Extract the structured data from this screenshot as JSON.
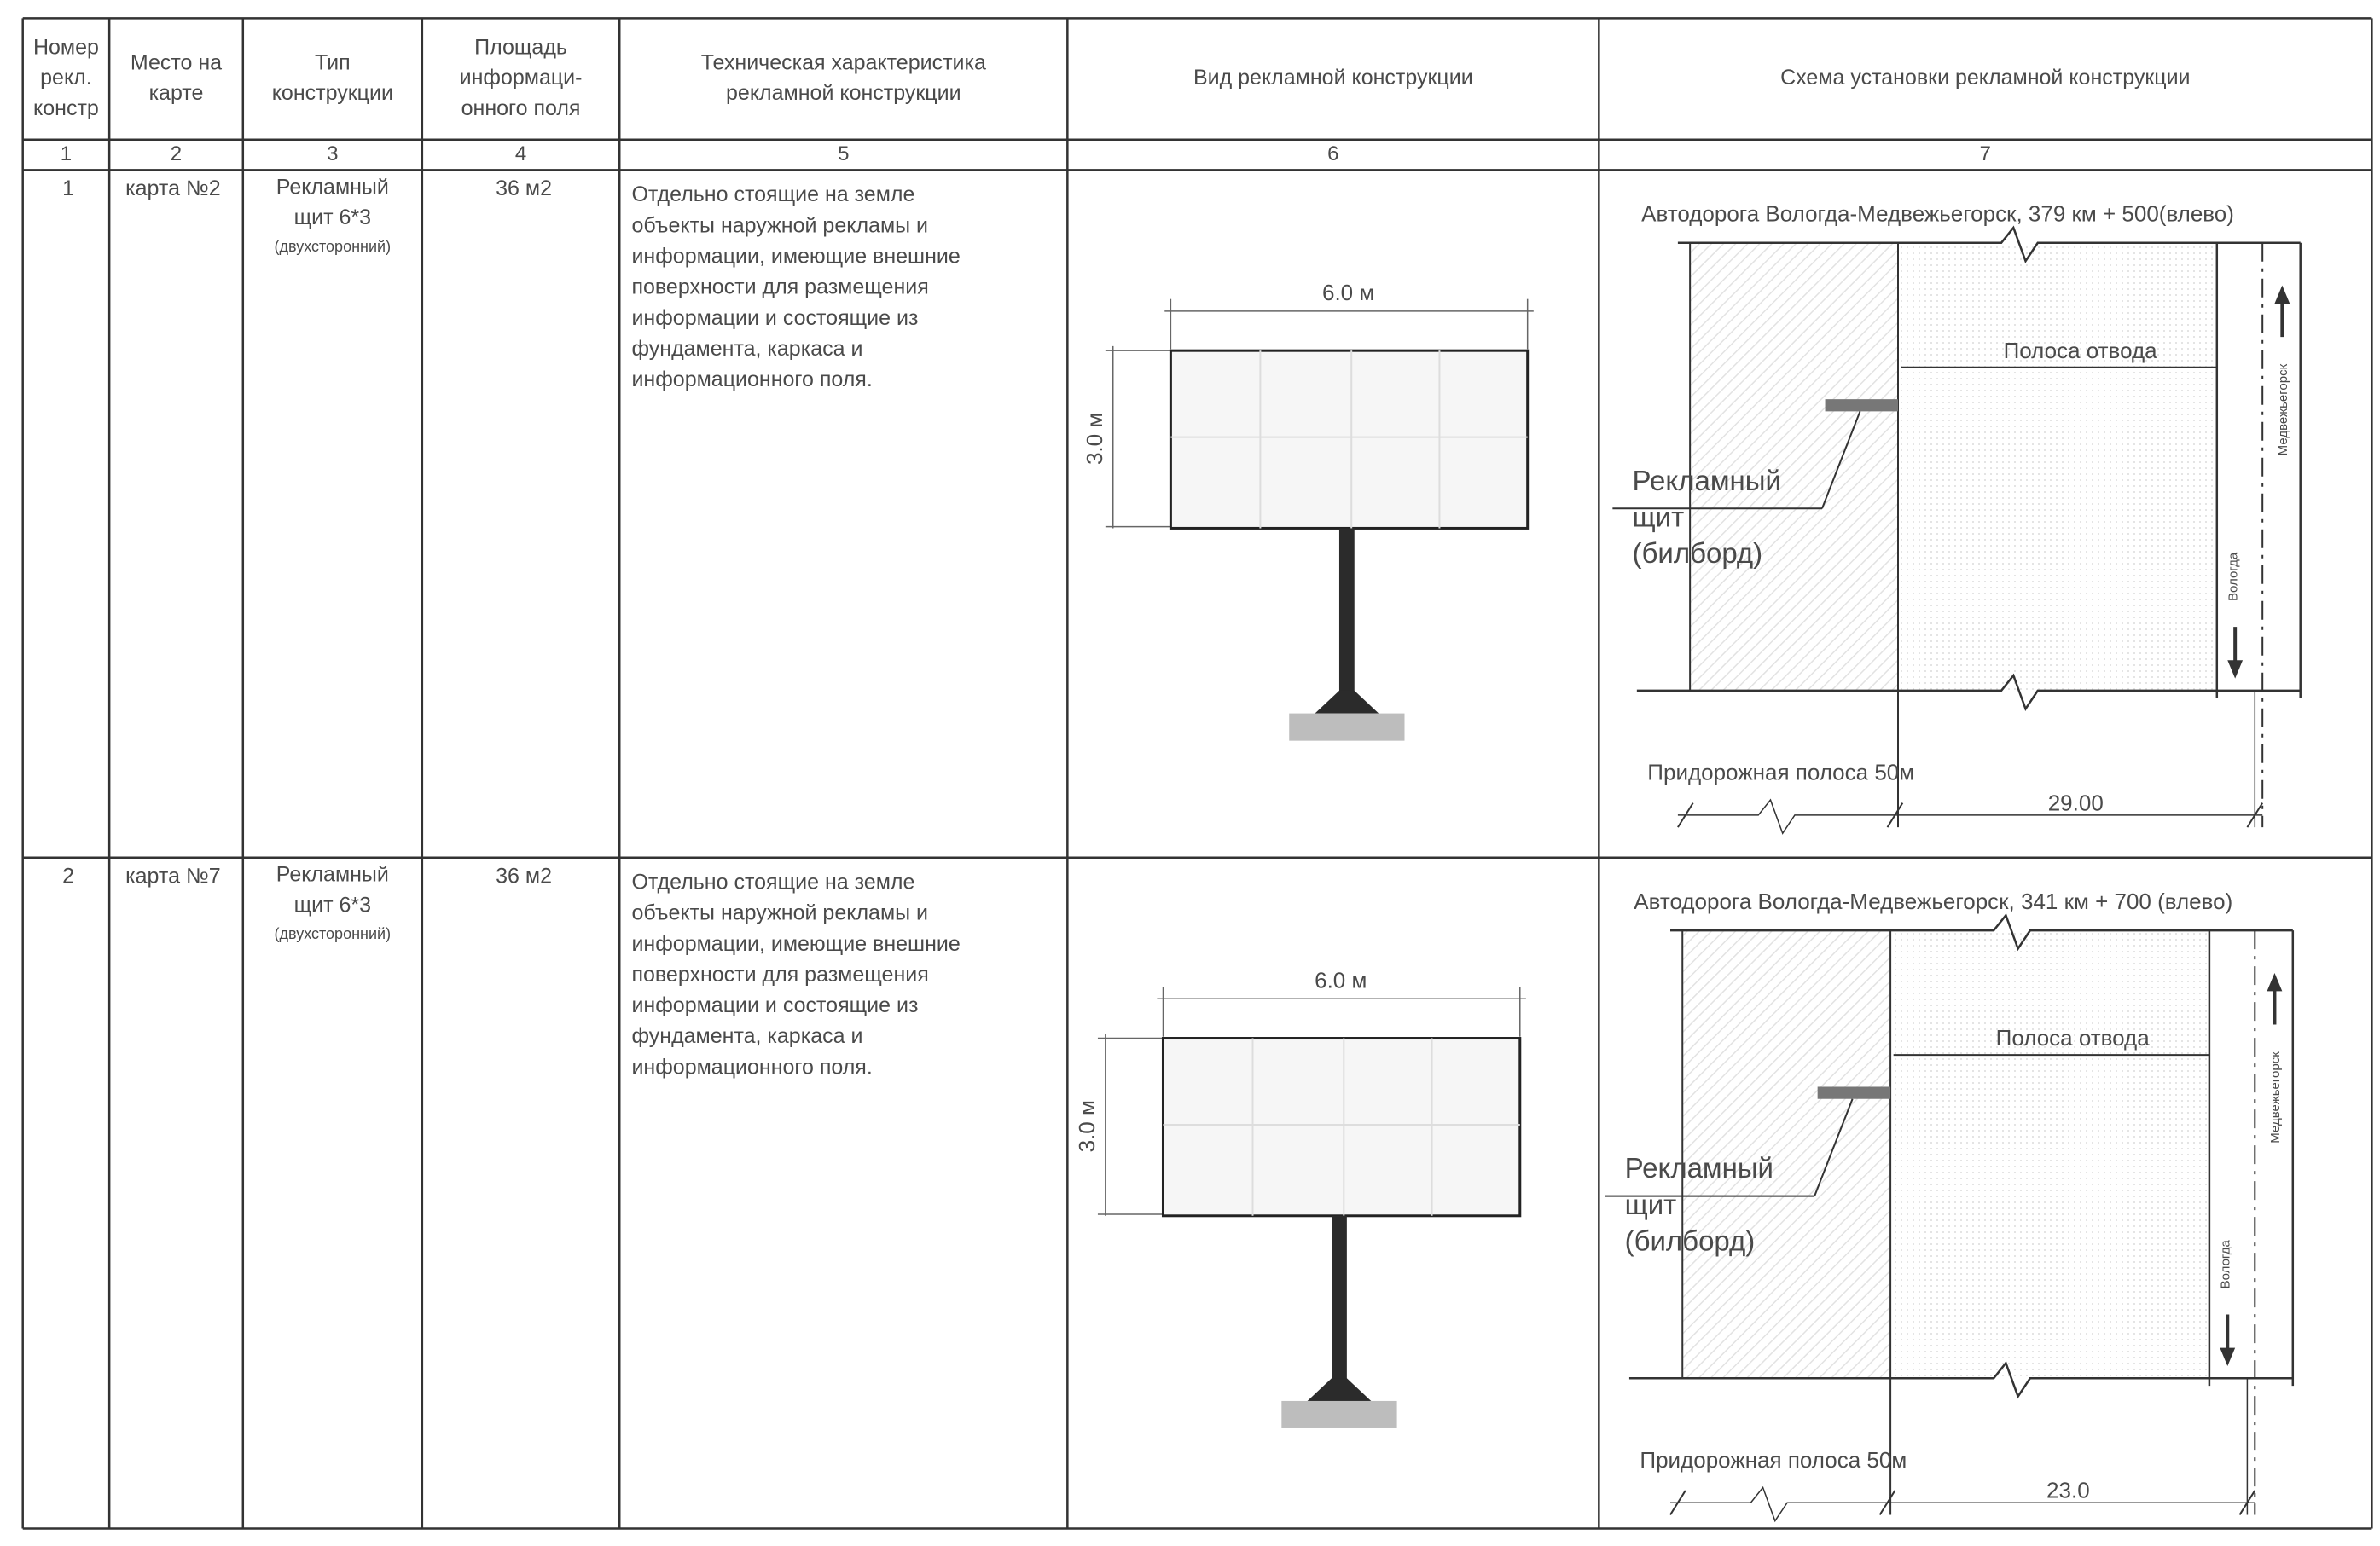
{
  "table": {
    "header": [
      [
        "Номер",
        "рекл.",
        "констр"
      ],
      [
        "Место на",
        "карте"
      ],
      [
        "Тип",
        "конструкции"
      ],
      [
        "Площадь",
        "информаци-",
        "онного поля"
      ],
      [
        "Техническая характеристика",
        "рекламной конструкции"
      ],
      [
        "Вид рекламной конструкции"
      ],
      [
        "Схема установки рекламной конструкции"
      ]
    ],
    "column_numbers": [
      "1",
      "2",
      "3",
      "4",
      "5",
      "6",
      "7"
    ],
    "rows": [
      {
        "number": "1",
        "map": "карта №2",
        "type": [
          "Рекламный",
          "щит 6*3"
        ],
        "type_note": "(двухсторонний)",
        "area": "36 м2",
        "description": [
          "Отдельно стоящие на земле",
          "объекты наружной рекламы и",
          "информации, имеющие внешние",
          "поверхности для размещения",
          "информации и состоящие из",
          "фундамента, каркаса и",
          "информационного поля."
        ],
        "view": {
          "width": "6.0 м",
          "height": "3.0 м"
        },
        "scheme": {
          "road": "Автодорога Вологда-Медвежьегорск, 379 км + 500(влево)",
          "right_of_way": "Полоса отвода",
          "board": [
            "Рекламный",
            "щит",
            "(билборд)"
          ],
          "roadside": "Придорожная полоса 50м",
          "distance": "29.00",
          "direction_up": "Медвежьегорск",
          "direction_down": "Вологда"
        }
      },
      {
        "number": "2",
        "map": "карта №7",
        "type": [
          "Рекламный",
          "щит 6*3"
        ],
        "type_note": "(двухсторонний)",
        "area": "36 м2",
        "description": [
          "Отдельно стоящие на земле",
          "объекты наружной рекламы и",
          "информации, имеющие внешние",
          "поверхности для размещения",
          "информации и состоящие из",
          "фундамента, каркаса и",
          "информационного поля."
        ],
        "view": {
          "width": "6.0 м",
          "height": "3.0 м"
        },
        "scheme": {
          "road": "Автодорога Вологда-Медвежьегорск, 341 км + 700 (влево)",
          "right_of_way": "Полоса отвода",
          "board": [
            "Рекламный",
            "щит",
            "(билборд)"
          ],
          "roadside": "Придорожная полоса 50м",
          "distance": "23.0",
          "direction_up": "Медвежьегорск",
          "direction_down": "Вологда"
        }
      }
    ]
  }
}
